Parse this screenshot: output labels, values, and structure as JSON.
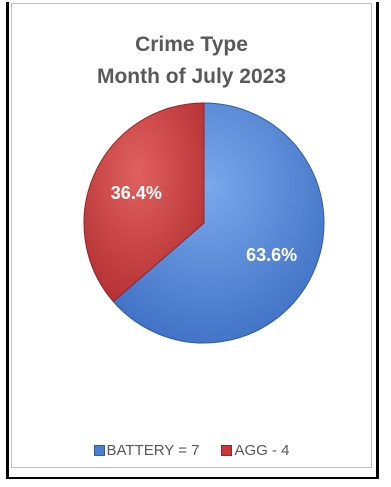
{
  "chart_data": {
    "type": "pie",
    "title_line1": "Crime Type",
    "title_line2": "Month of July 2023",
    "slices": [
      {
        "legend": "BATTERY = 7",
        "value": 7,
        "label": "63.6%",
        "color": "#4a7fd0"
      },
      {
        "legend": "AGG - 4",
        "value": 4,
        "label": "36.4%",
        "color": "#c9373a"
      }
    ],
    "legend_position": "bottom"
  }
}
